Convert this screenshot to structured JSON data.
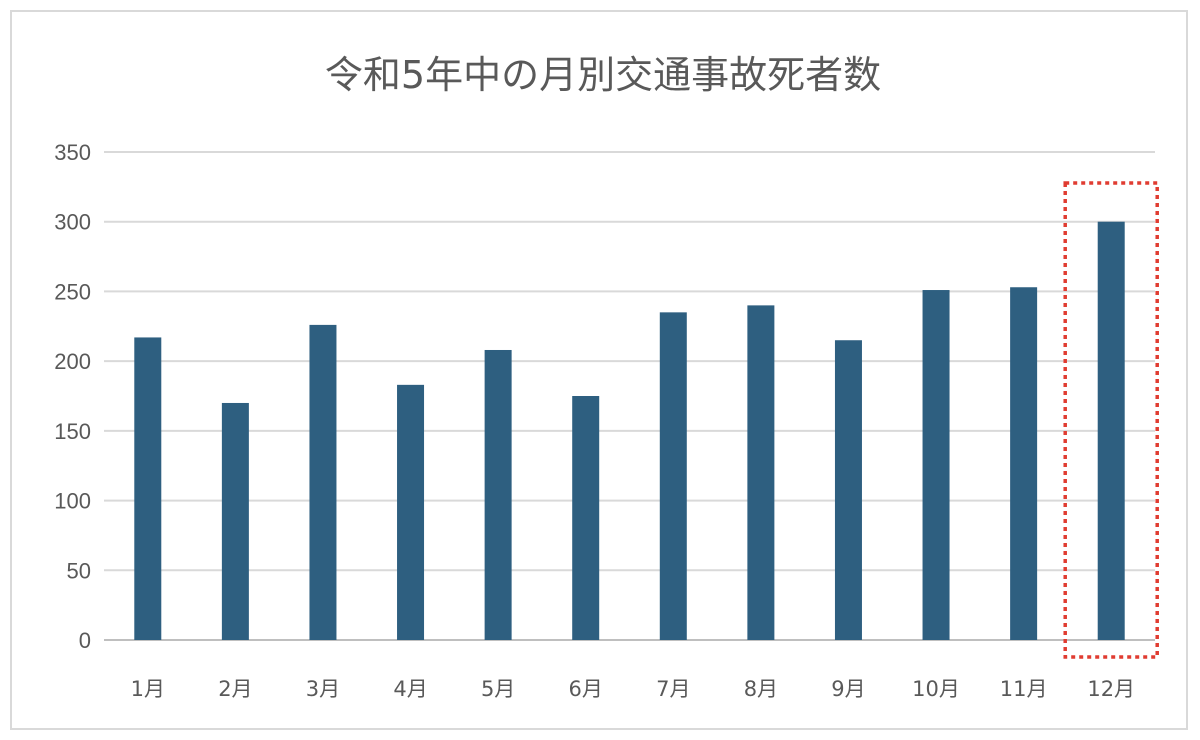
{
  "chart_data": {
    "type": "bar",
    "title": "令和5年中の月別交通事故死者数",
    "categories": [
      "1月",
      "2月",
      "3月",
      "4月",
      "5月",
      "6月",
      "7月",
      "8月",
      "9月",
      "10月",
      "11月",
      "12月"
    ],
    "values": [
      217,
      170,
      226,
      183,
      208,
      175,
      235,
      240,
      215,
      251,
      253,
      300
    ],
    "xlabel": "",
    "ylabel": "",
    "ylim": [
      0,
      350
    ],
    "yticks": [
      0,
      50,
      100,
      150,
      200,
      250,
      300,
      350
    ],
    "grid": true,
    "bar_color": "#2e5f80",
    "highlight": {
      "category": "12月",
      "style": "dotted",
      "color": "#e03c31"
    }
  }
}
